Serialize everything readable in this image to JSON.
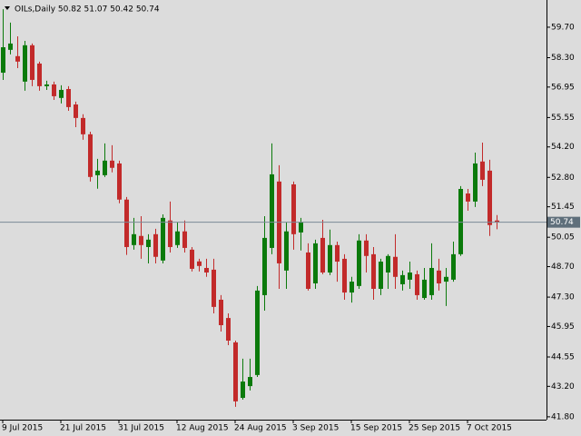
{
  "chart_data": {
    "type": "candlestick",
    "title": "OILs,Daily 50.82 51.07 50.42 50.74",
    "categories": [
      "9 Jul 2015",
      null,
      null,
      null,
      null,
      null,
      null,
      null,
      "21 Jul 2015",
      null,
      null,
      null,
      null,
      null,
      null,
      null,
      "31 Jul 2015",
      null,
      null,
      null,
      null,
      null,
      null,
      null,
      "12 Aug 2015",
      null,
      null,
      null,
      null,
      null,
      null,
      null,
      "24 Aug 2015",
      null,
      null,
      null,
      null,
      null,
      null,
      null,
      "3 Sep 2015",
      null,
      null,
      null,
      null,
      null,
      null,
      null,
      "15 Sep 2015",
      null,
      null,
      null,
      null,
      null,
      null,
      null,
      "25 Sep 2015",
      null,
      null,
      null,
      null,
      null,
      null,
      null,
      "7 Oct 2015",
      null,
      null,
      null,
      null
    ],
    "open": [
      57.61,
      58.66,
      58.37,
      57.2,
      58.87,
      58.03,
      56.99,
      57.07,
      56.45,
      56.86,
      56.15,
      55.53,
      54.78,
      52.9,
      52.9,
      53.57,
      53.44,
      51.78,
      49.69,
      50.11,
      49.6,
      50.19,
      48.98,
      50.82,
      49.69,
      50.32,
      49.48,
      48.94,
      48.64,
      48.56,
      47.18,
      46.34,
      45.22,
      42.67,
      43.21,
      43.72,
      47.39,
      49.56,
      52.61,
      48.52,
      52.48,
      50.27,
      49.35,
      47.93,
      50.02,
      48.43,
      49.69,
      49.06,
      47.51,
      47.81,
      49.9,
      49.27,
      47.68,
      48.43,
      49.15,
      47.89,
      48.1,
      48.35,
      47.26,
      47.39,
      48.52,
      48.01,
      48.1,
      49.27,
      52.06,
      51.69,
      53.53,
      53.11,
      50.82
    ],
    "high": [
      60.53,
      59.91,
      59.28,
      59.07,
      58.95,
      58.12,
      57.24,
      57.2,
      57.03,
      56.99,
      56.28,
      55.7,
      54.9,
      53.65,
      54.36,
      54.28,
      53.57,
      51.9,
      50.94,
      51.02,
      50.19,
      50.44,
      51.1,
      51.69,
      50.73,
      50.82,
      49.6,
      49.06,
      49.06,
      49.06,
      47.39,
      46.55,
      45.3,
      44.47,
      44.47,
      47.81,
      51.02,
      54.36,
      53.36,
      50.73,
      52.61,
      50.94,
      49.77,
      49.94,
      50.85,
      50.4,
      49.85,
      49.27,
      48.23,
      50.19,
      50.19,
      49.6,
      49.06,
      49.27,
      50.19,
      48.52,
      48.93,
      48.52,
      48.64,
      49.77,
      49.06,
      48.64,
      49.85,
      52.4,
      52.27,
      53.94,
      54.4,
      53.61,
      51.07
    ],
    "low": [
      57.28,
      58.45,
      57.82,
      56.78,
      56.99,
      56.78,
      56.82,
      56.36,
      56.2,
      55.86,
      55.11,
      54.53,
      52.61,
      52.28,
      52.82,
      53.03,
      51.61,
      49.24,
      49.48,
      49.06,
      48.85,
      48.85,
      48.85,
      49.35,
      49.56,
      49.35,
      48.48,
      48.48,
      48.23,
      46.55,
      45.72,
      45.09,
      42.26,
      42.59,
      43.01,
      43.63,
      46.68,
      49.27,
      47.68,
      47.68,
      49.48,
      49.44,
      47.6,
      47.68,
      48.35,
      48.31,
      48.01,
      47.18,
      47.05,
      47.68,
      48.43,
      47.18,
      47.39,
      47.68,
      47.68,
      47.6,
      47.68,
      47.18,
      47.18,
      47.18,
      47.6,
      46.89,
      48.01,
      49.19,
      51.27,
      51.44,
      52.4,
      50.11,
      50.42
    ],
    "close": [
      58.78,
      58.95,
      58.12,
      58.87,
      57.28,
      56.99,
      57.07,
      56.53,
      56.82,
      56.03,
      55.53,
      54.78,
      52.82,
      53.11,
      53.57,
      53.24,
      51.78,
      49.6,
      50.19,
      49.69,
      49.94,
      49.15,
      50.94,
      49.6,
      50.32,
      49.56,
      48.6,
      48.73,
      48.43,
      46.85,
      46.01,
      45.3,
      42.51,
      43.42,
      43.63,
      47.6,
      50.02,
      52.94,
      48.85,
      50.32,
      50.19,
      50.73,
      47.68,
      49.77,
      48.43,
      49.69,
      48.93,
      47.51,
      48.01,
      49.9,
      49.19,
      47.68,
      48.93,
      49.19,
      48.23,
      48.31,
      48.43,
      47.39,
      48.1,
      48.64,
      47.93,
      48.23,
      49.27,
      52.27,
      51.69,
      53.44,
      52.69,
      50.61,
      50.74
    ],
    "up_color": "#0b7a0b",
    "down_color": "#c22a2a",
    "price_line": 50.74,
    "ylim": [
      41.67,
      60.95
    ],
    "yticks": [
      {
        "value": 59.7,
        "label": "59.70"
      },
      {
        "value": 58.3,
        "label": "58.30"
      },
      56.95,
      55.55,
      {
        "value": 54.2,
        "label": "54.20"
      },
      {
        "value": 52.8,
        "label": "52.80"
      },
      51.45,
      50.05,
      {
        "value": 48.7,
        "label": "48.70"
      },
      {
        "value": 47.3,
        "label": "47.30"
      },
      45.95,
      44.55,
      {
        "value": 43.2,
        "label": "43.20"
      },
      {
        "value": 41.8,
        "label": "41.80"
      }
    ]
  }
}
